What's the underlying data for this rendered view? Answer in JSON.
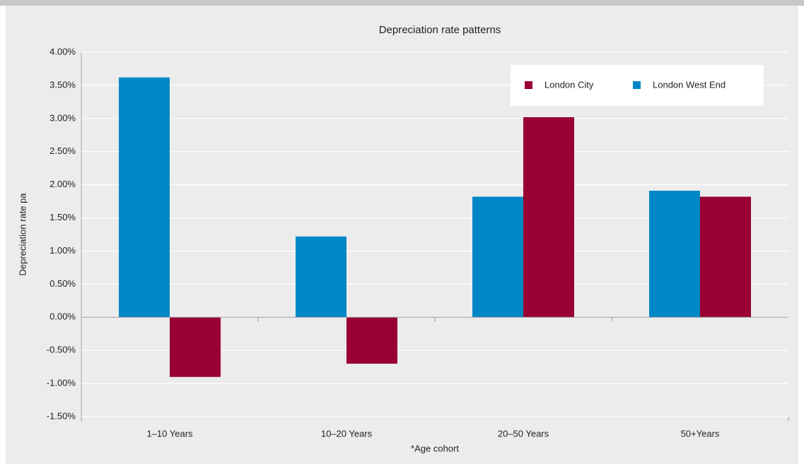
{
  "chart_data": {
    "type": "bar",
    "title": "Depreciation rate patterns",
    "x_label": "*Age cohort",
    "y_label": "Depreciation rate pa",
    "categories": [
      "1–10 Years",
      "10–20 Years",
      "20–50 Years",
      "50+Years"
    ],
    "series": [
      {
        "name": "London City",
        "color": "#990033",
        "values": [
          -0.9,
          -0.7,
          3.02,
          1.82
        ]
      },
      {
        "name": "London West End",
        "color": "#0087c6",
        "values": [
          3.62,
          1.22,
          1.82,
          1.91
        ]
      }
    ],
    "ylim": [
      -1.5,
      4
    ],
    "yticks": [
      {
        "value": -1.5,
        "label": "-1.50%"
      },
      {
        "value": -1,
        "label": "-1.00%"
      },
      {
        "value": -0.5,
        "label": "-0.50%"
      },
      {
        "value": 0,
        "label": "0.00%"
      },
      {
        "value": 0.5,
        "label": "0.50%"
      },
      {
        "value": 1,
        "label": "1.00%"
      },
      {
        "value": 1.5,
        "label": "1.50%"
      },
      {
        "value": 2,
        "label": "2.00%"
      },
      {
        "value": 2.5,
        "label": "2.50%"
      },
      {
        "value": 3,
        "label": "3.00%"
      },
      {
        "value": 3.5,
        "label": "3.50%"
      },
      {
        "value": 4,
        "label": "4.00%"
      }
    ],
    "grid": true,
    "legend_position": "top-right"
  }
}
